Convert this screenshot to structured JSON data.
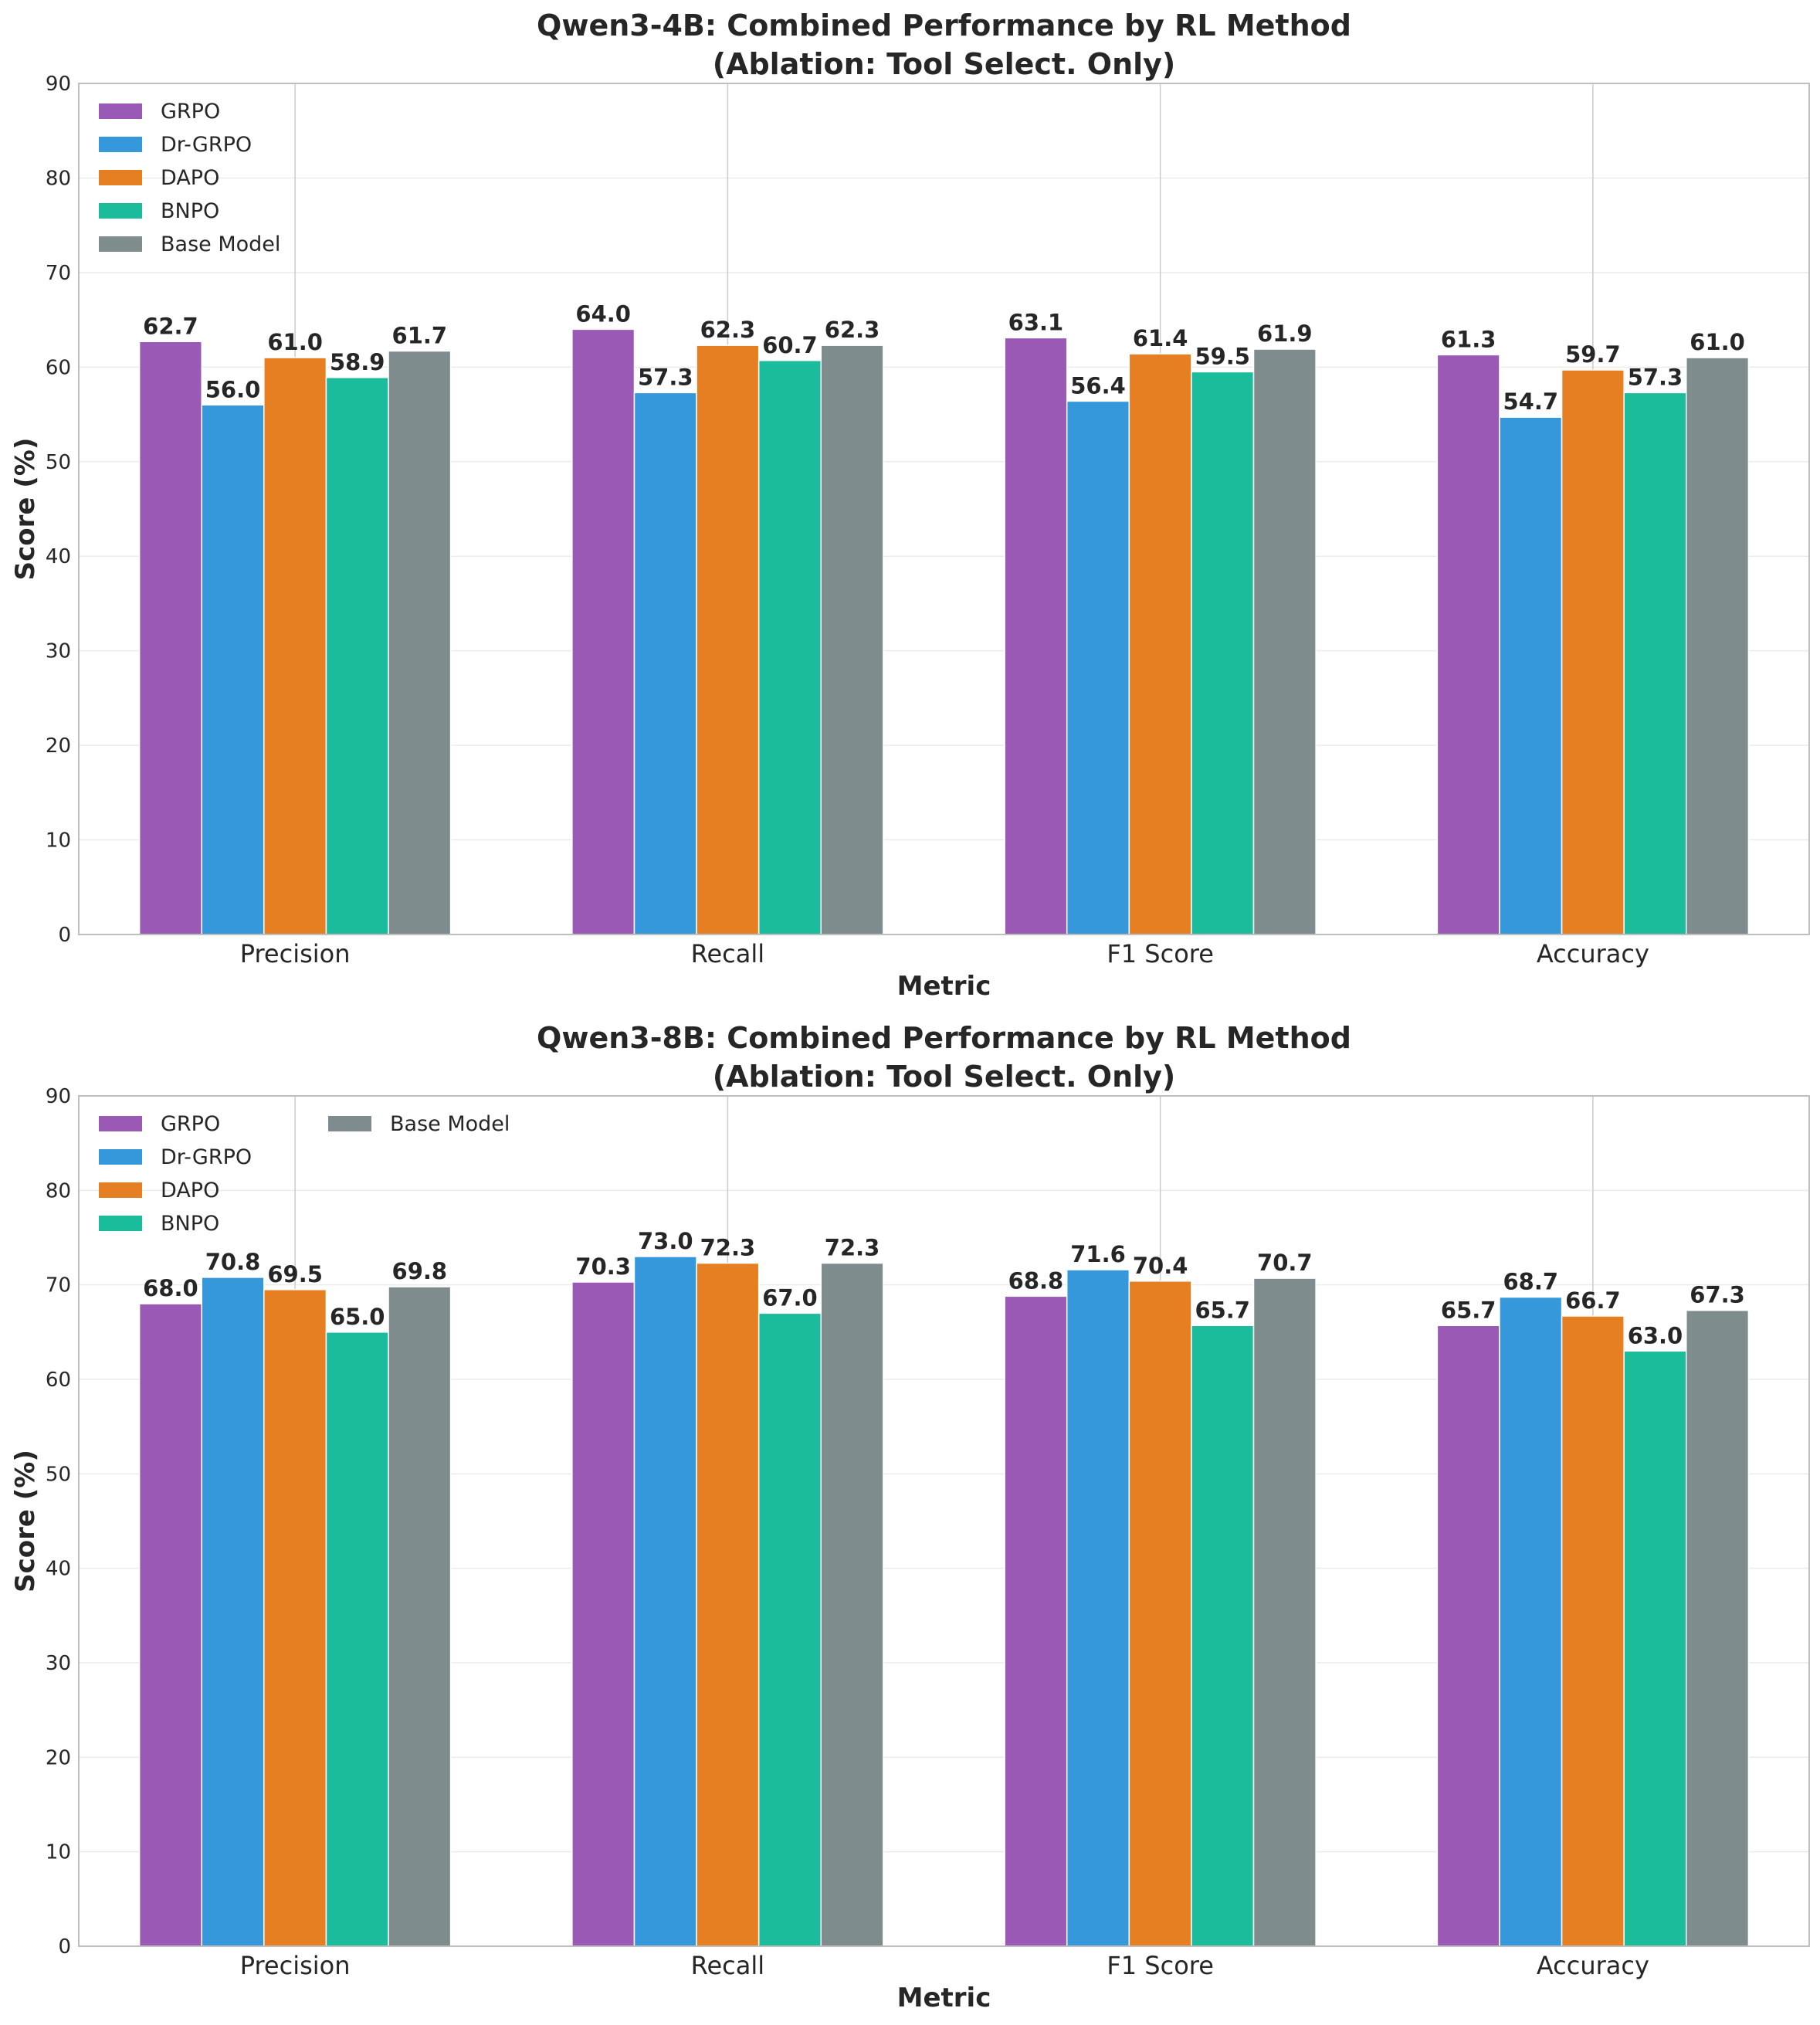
{
  "chart_data": [
    {
      "type": "bar",
      "title_line1": "Qwen3-4B: Combined Performance by RL Method",
      "title_line2": "(Ablation: Tool Select. Only)",
      "xlabel": "Metric",
      "ylabel": "Score (%)",
      "ylim": [
        0,
        90
      ],
      "yticks": [
        "0",
        "10",
        "20",
        "30",
        "40",
        "50",
        "60",
        "70",
        "80",
        "90"
      ],
      "categories": [
        "Precision",
        "Recall",
        "F1 Score",
        "Accuracy"
      ],
      "legend_position": "top-left",
      "grid": true,
      "series": [
        {
          "name": "GRPO",
          "color": "#9b59b6",
          "values": [
            62.7,
            64.0,
            63.1,
            61.3
          ],
          "labels": [
            "62.7",
            "64.0",
            "63.1",
            "61.3"
          ]
        },
        {
          "name": "Dr-GRPO",
          "color": "#3498db",
          "values": [
            56.0,
            57.3,
            56.4,
            54.7
          ],
          "labels": [
            "56.0",
            "57.3",
            "56.4",
            "54.7"
          ]
        },
        {
          "name": "DAPO",
          "color": "#e67e22",
          "values": [
            61.0,
            62.3,
            61.4,
            59.7
          ],
          "labels": [
            "61.0",
            "62.3",
            "61.4",
            "59.7"
          ]
        },
        {
          "name": "BNPO",
          "color": "#1abc9c",
          "values": [
            58.9,
            60.7,
            59.5,
            57.3
          ],
          "labels": [
            "58.9",
            "60.7",
            "59.5",
            "57.3"
          ]
        },
        {
          "name": "Base Model",
          "color": "#7f8c8d",
          "values": [
            61.7,
            62.3,
            61.9,
            61.0
          ],
          "labels": [
            "61.7",
            "62.3",
            "61.9",
            "61.0"
          ]
        }
      ]
    },
    {
      "type": "bar",
      "title_line1": "Qwen3-8B: Combined Performance by RL Method",
      "title_line2": "(Ablation: Tool Select. Only)",
      "xlabel": "Metric",
      "ylabel": "Score (%)",
      "ylim": [
        0,
        90
      ],
      "yticks": [
        "0",
        "10",
        "20",
        "30",
        "40",
        "50",
        "60",
        "70",
        "80",
        "90"
      ],
      "categories": [
        "Precision",
        "Recall",
        "F1 Score",
        "Accuracy"
      ],
      "legend_position": "top-left",
      "grid": true,
      "series": [
        {
          "name": "GRPO",
          "color": "#9b59b6",
          "values": [
            68.0,
            70.3,
            68.8,
            65.7
          ],
          "labels": [
            "68.0",
            "70.3",
            "68.8",
            "65.7"
          ]
        },
        {
          "name": "Dr-GRPO",
          "color": "#3498db",
          "values": [
            70.8,
            73.0,
            71.6,
            68.7
          ],
          "labels": [
            "70.8",
            "73.0",
            "71.6",
            "68.7"
          ]
        },
        {
          "name": "DAPO",
          "color": "#e67e22",
          "values": [
            69.5,
            72.3,
            70.4,
            66.7
          ],
          "labels": [
            "69.5",
            "72.3",
            "70.4",
            "66.7"
          ]
        },
        {
          "name": "BNPO",
          "color": "#1abc9c",
          "values": [
            65.0,
            67.0,
            65.7,
            63.0
          ],
          "labels": [
            "65.0",
            "67.0",
            "65.7",
            "63.0"
          ]
        },
        {
          "name": "Base Model",
          "color": "#7f8c8d",
          "values": [
            69.8,
            72.3,
            70.7,
            67.3
          ],
          "labels": [
            "69.8",
            "72.3",
            "70.7",
            "67.3"
          ]
        }
      ]
    }
  ]
}
